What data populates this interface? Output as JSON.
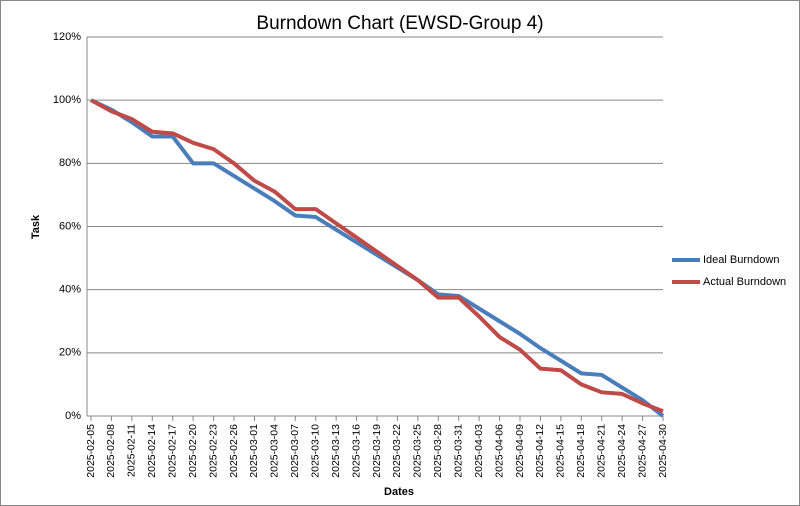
{
  "chart_data": {
    "type": "line",
    "title": "Burndown Chart (EWSD-Group 4)",
    "x_label": "Dates",
    "y_label": "Task",
    "categories": [
      "2025-02-05",
      "2025-02-08",
      "2025-02-11",
      "2025-02-14",
      "2025-02-17",
      "2025-02-20",
      "2025-02-23",
      "2025-02-26",
      "2025-03-01",
      "2025-03-04",
      "2025-03-07",
      "2025-03-10",
      "2025-03-13",
      "2025-03-16",
      "2025-03-19",
      "2025-03-22",
      "2025-03-25",
      "2025-03-28",
      "2025-03-31",
      "2025-04-03",
      "2025-04-06",
      "2025-04-09",
      "2025-04-12",
      "2025-04-15",
      "2025-04-18",
      "2025-04-21",
      "2025-04-24",
      "2025-04-27",
      "2025-04-30"
    ],
    "series": [
      {
        "name": "Ideal Burndown",
        "color": "#4a7ebb",
        "values": [
          100,
          97,
          93,
          88.5,
          88.5,
          80,
          80,
          76,
          72,
          68,
          63.5,
          63,
          59,
          55,
          51,
          47,
          43,
          38.5,
          38,
          34,
          30,
          26,
          21.5,
          17.5,
          13.5,
          13,
          9,
          5,
          0
        ]
      },
      {
        "name": "Actual Burndown",
        "color": "#be4b48",
        "values": [
          100,
          96.5,
          94,
          90,
          89.5,
          86.5,
          84.5,
          80,
          74.5,
          71,
          65.5,
          65.5,
          61,
          56.5,
          52,
          47.5,
          43,
          37.5,
          37.5,
          31.5,
          25,
          21,
          15,
          14.5,
          10,
          7.5,
          7,
          4,
          1.5
        ]
      }
    ],
    "ylim": [
      0,
      120
    ],
    "yticks": [
      {
        "value": 0,
        "label": "0%"
      },
      {
        "value": 20,
        "label": "20%"
      },
      {
        "value": 40,
        "label": "40%"
      },
      {
        "value": 60,
        "label": "60%"
      },
      {
        "value": 80,
        "label": "80%"
      },
      {
        "value": 100,
        "label": "100%"
      },
      {
        "value": 120,
        "label": "120%"
      }
    ],
    "grid": true,
    "legend": "right"
  }
}
